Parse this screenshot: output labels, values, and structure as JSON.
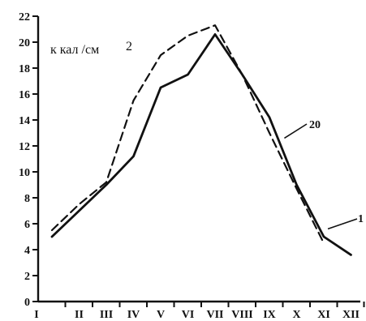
{
  "chart_data": {
    "type": "line",
    "title": "",
    "xlabel": "",
    "ylabel": "",
    "unit_label": "к кал /см",
    "unit_exponent": "2",
    "categories": [
      "I",
      "II",
      "III",
      "IV",
      "V",
      "VI",
      "VII",
      "VIII",
      "IX",
      "X",
      "XI",
      "XII"
    ],
    "y_ticks": [
      "0",
      "2",
      "4",
      "6",
      "8",
      "10",
      "12",
      "14",
      "16",
      "18",
      "20",
      "22"
    ],
    "ylim": [
      0,
      22
    ],
    "grid": false,
    "legend": "none",
    "series": [
      {
        "name": "20",
        "style": "solid",
        "color": "#111111",
        "values": [
          5.0,
          7.0,
          9.0,
          11.2,
          16.5,
          17.5,
          20.6,
          17.5,
          14.2,
          9.0,
          5.0,
          3.6
        ]
      },
      {
        "name": "1",
        "style": "dashed",
        "color": "#111111",
        "values": [
          5.5,
          7.5,
          9.2,
          15.5,
          19.0,
          20.5,
          21.3,
          17.5,
          13.0,
          8.7,
          4.5,
          null
        ]
      }
    ]
  }
}
